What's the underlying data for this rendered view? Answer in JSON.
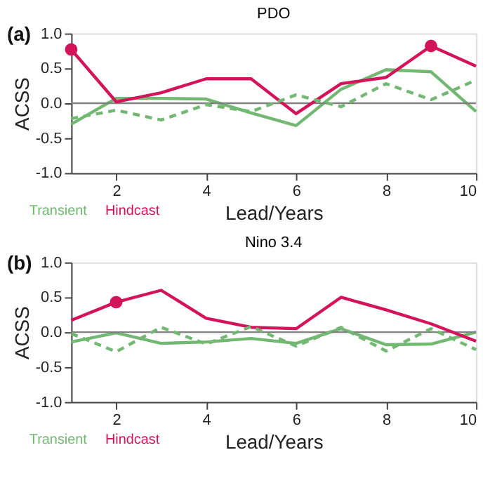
{
  "chart_data": [
    {
      "type": "line",
      "title": "PDO",
      "xlabel": "Lead/Years",
      "ylabel": "ACSS",
      "annotations": [
        "(a)"
      ],
      "line_style": "solid",
      "marker": "none",
      "grid": false,
      "x": [
        1,
        2,
        3,
        4,
        5,
        6,
        7,
        8,
        9,
        10
      ],
      "series": [
        {
          "name": "Transient",
          "color": "#72b872",
          "values": [
            -0.3,
            0.07,
            0.07,
            0.06,
            -0.14,
            -0.32,
            0.2,
            0.48,
            0.45,
            -0.12
          ]
        },
        {
          "name": "Hindcast",
          "color": "#d4145a",
          "values": [
            0.77,
            0.02,
            0.15,
            0.35,
            0.35,
            -0.15,
            0.28,
            0.37,
            0.82,
            0.53
          ]
        },
        {
          "color": "#72b872",
          "line_style": "dashed",
          "values": [
            -0.22,
            -0.1,
            -0.24,
            -0.02,
            -0.12,
            0.12,
            -0.05,
            0.28,
            0.05,
            0.33
          ]
        },
        {
          "type": "scatter",
          "color": "#d4145a",
          "marker": "circle",
          "x": [
            1,
            9
          ],
          "values": [
            0.77,
            0.82
          ]
        }
      ],
      "ref_lines": [
        {
          "axis": "y",
          "value": 0,
          "color": "#808080"
        }
      ],
      "xlim": [
        1,
        10
      ],
      "xticks": [
        2,
        4,
        6,
        8,
        10
      ],
      "ylim": [
        -1,
        1
      ],
      "yticks": [
        {
          "value": -1,
          "label": "-1.0"
        },
        {
          "value": -0.5,
          "label": "-0.5"
        },
        {
          "value": 0,
          "label": "0.0"
        },
        {
          "value": 0.5,
          "label": "0.5"
        },
        {
          "value": 1,
          "label": "1.0"
        }
      ]
    },
    {
      "type": "line",
      "title": "Nino 3.4",
      "xlabel": "Lead/Years",
      "ylabel": "ACSS",
      "annotations": [
        "(b)"
      ],
      "line_style": "solid",
      "marker": "none",
      "grid": false,
      "x": [
        1,
        2,
        3,
        4,
        5,
        6,
        7,
        8,
        9,
        10
      ],
      "series": [
        {
          "name": "Transient",
          "color": "#72b872",
          "values": [
            -0.14,
            -0.01,
            -0.16,
            -0.14,
            -0.09,
            -0.16,
            0.05,
            -0.18,
            -0.17,
            0.0
          ]
        },
        {
          "name": "Hindcast",
          "color": "#d4145a",
          "values": [
            0.17,
            0.43,
            0.6,
            0.2,
            0.07,
            0.05,
            0.5,
            0.32,
            0.12,
            -0.13
          ]
        },
        {
          "color": "#72b872",
          "line_style": "dashed",
          "values": [
            -0.02,
            -0.28,
            0.07,
            -0.17,
            0.08,
            -0.2,
            0.07,
            -0.27,
            0.05,
            -0.25
          ]
        },
        {
          "type": "scatter",
          "color": "#d4145a",
          "marker": "circle",
          "x": [
            2
          ],
          "values": [
            0.43
          ]
        }
      ],
      "ref_lines": [
        {
          "axis": "y",
          "value": 0,
          "color": "#808080"
        }
      ],
      "xlim": [
        1,
        10
      ],
      "xticks": [
        2,
        4,
        6,
        8,
        10
      ],
      "ylim": [
        -1,
        1
      ],
      "yticks": [
        {
          "value": -1,
          "label": "-1.0"
        },
        {
          "value": -0.5,
          "label": "-0.5"
        },
        {
          "value": 0,
          "label": "0.0"
        },
        {
          "value": 0.5,
          "label": "0.5"
        },
        {
          "value": 1,
          "label": "1.0"
        }
      ]
    }
  ]
}
